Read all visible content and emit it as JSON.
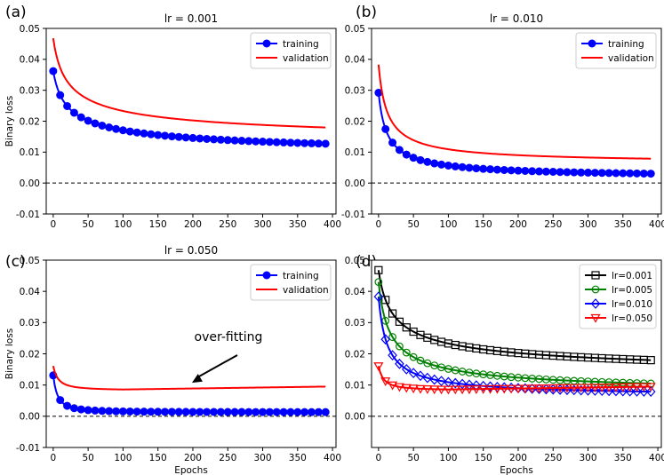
{
  "chart_data": [
    {
      "panel": "(a)",
      "type": "line",
      "title": "lr = 0.001",
      "ylabel": "Binary loss",
      "xlabel": "",
      "xlim": [
        -10,
        405
      ],
      "ylim": [
        -0.01,
        0.05
      ],
      "xticks": [
        0,
        50,
        100,
        150,
        200,
        250,
        300,
        350,
        400
      ],
      "yticks": [
        -0.01,
        0.0,
        0.01,
        0.02,
        0.03,
        0.04,
        0.05
      ],
      "ytick_labels": [
        "-0.01",
        "0.00",
        "0.01",
        "0.02",
        "0.03",
        "0.04",
        "0.05"
      ],
      "legend": {
        "placement": "top-right",
        "entries": [
          "training",
          "validation"
        ]
      },
      "series": [
        {
          "name": "training",
          "color": "#0000ff",
          "marker": "filled-circle",
          "params": {
            "a": 0.0072,
            "b": 0.0362,
            "k": 0.45
          }
        },
        {
          "name": "validation",
          "color": "#ff0000",
          "marker": "none",
          "params": {
            "a": 0.0112,
            "b": 0.0468,
            "k": 0.45
          }
        }
      ],
      "hline": 0.0
    },
    {
      "panel": "(b)",
      "type": "line",
      "title": "lr = 0.010",
      "ylabel": "",
      "xlabel": "",
      "xlim": [
        -10,
        405
      ],
      "ylim": [
        -0.01,
        0.05
      ],
      "xticks": [
        0,
        50,
        100,
        150,
        200,
        250,
        300,
        350,
        400
      ],
      "yticks": [
        -0.01,
        0.0,
        0.01,
        0.02,
        0.03,
        0.04,
        0.05
      ],
      "ytick_labels": [
        "-0.01",
        "0.00",
        "0.01",
        "0.02",
        "0.03",
        "0.04",
        "0.05"
      ],
      "legend": {
        "placement": "top-right",
        "entries": [
          "training",
          "validation"
        ]
      },
      "series": [
        {
          "name": "training",
          "color": "#0000ff",
          "marker": "filled-circle",
          "params": {
            "a": 0.0016,
            "b": 0.0292,
            "k": 0.8
          }
        },
        {
          "name": "validation",
          "color": "#ff0000",
          "marker": "none",
          "params": {
            "a": 0.0062,
            "b": 0.0383,
            "k": 0.8
          }
        }
      ],
      "hline": 0.0
    },
    {
      "panel": "(c)",
      "type": "line",
      "title": "lr = 0.050",
      "ylabel": "Binary loss",
      "xlabel": "Epochs",
      "xlim": [
        -10,
        405
      ],
      "ylim": [
        -0.01,
        0.05
      ],
      "xticks": [
        0,
        50,
        100,
        150,
        200,
        250,
        300,
        350,
        400
      ],
      "yticks": [
        -0.01,
        0.0,
        0.01,
        0.02,
        0.03,
        0.04,
        0.05
      ],
      "ytick_labels": [
        "-0.01",
        "0.00",
        "0.01",
        "0.02",
        "0.03",
        "0.04",
        "0.05"
      ],
      "legend": {
        "placement": "top-right",
        "entries": [
          "training",
          "validation"
        ]
      },
      "annotation": {
        "text": "over-fitting",
        "x": 200,
        "y": 0.009
      },
      "series": [
        {
          "name": "training",
          "color": "#0000ff",
          "marker": "filled-circle",
          "params": {
            "type": "train_c"
          }
        },
        {
          "name": "validation",
          "color": "#ff0000",
          "marker": "none",
          "params": {
            "type": "val_c"
          }
        }
      ],
      "hline": 0.0
    },
    {
      "panel": "(d)",
      "type": "line",
      "title": "",
      "ylabel": "",
      "xlabel": "Epochs",
      "xlim": [
        -10,
        405
      ],
      "ylim": [
        -0.01,
        0.05
      ],
      "xticks": [
        0,
        50,
        100,
        150,
        200,
        250,
        300,
        350,
        400
      ],
      "yticks": [
        0.0,
        0.01,
        0.02,
        0.03,
        0.04,
        0.05
      ],
      "ytick_labels": [
        "0.00",
        "0.01",
        "0.02",
        "0.03",
        "0.04",
        "0.05"
      ],
      "legend": {
        "placement": "top-right",
        "entries": [
          "lr=0.001",
          "lr=0.005",
          "lr=0.010",
          "lr=0.050"
        ]
      },
      "series": [
        {
          "name": "lr=0.001",
          "color": "#000000",
          "marker": "open-square",
          "params": {
            "a": 0.0112,
            "b": 0.0468,
            "k": 0.45
          }
        },
        {
          "name": "lr=0.005",
          "color": "#008000",
          "marker": "open-circle",
          "params": {
            "a": 0.0065,
            "b": 0.043,
            "k": 0.6
          }
        },
        {
          "name": "lr=0.010",
          "color": "#0000ff",
          "marker": "open-diamond",
          "params": {
            "a": 0.0062,
            "b": 0.0383,
            "k": 0.8
          }
        },
        {
          "name": "lr=0.050",
          "color": "#ff0000",
          "marker": "open-triangle-down",
          "params": {
            "type": "val_c"
          }
        }
      ],
      "hline": 0.0
    }
  ],
  "panel_labels": [
    "(a)",
    "(b)",
    "(c)",
    "(d)"
  ],
  "colors": {
    "training": "#0000ff",
    "validation": "#ff0000",
    "axis": "#000000"
  }
}
